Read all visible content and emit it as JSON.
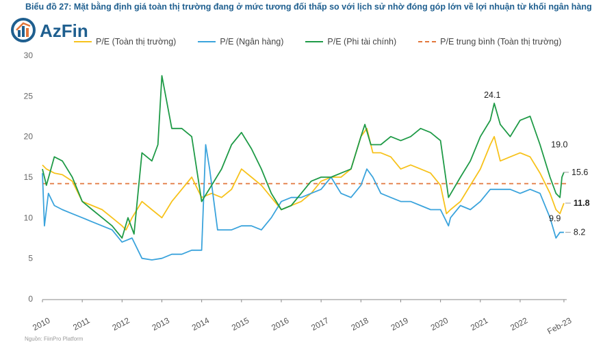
{
  "header": {
    "title": "Biểu đồ 27: Mặt bằng định giá toàn thị trường đang ở mức tương đối thấp so với lịch sử nhờ đóng góp lớn về lợi nhuận từ khối ngân hàng",
    "logo_text": "AzFin"
  },
  "footer": {
    "source": "Nguồn: FiinPro Platform"
  },
  "colors": {
    "market": "#f7c21b",
    "bank": "#3aa3dc",
    "nonfin": "#1e9a46",
    "avg": "#e2763b",
    "title": "#1f5f8f"
  },
  "chart_data": {
    "type": "line",
    "title": "Biểu đồ 27: Mặt bằng định giá toàn thị trường đang ở mức tương đối thấp so với lịch sử nhờ đóng góp lớn về lợi nhuận từ khối ngân hàng",
    "xlabel": "",
    "ylabel": "",
    "ylim": [
      0,
      30
    ],
    "xlim": [
      2010.0,
      2023.17
    ],
    "yticks": [
      "0",
      "5",
      "10",
      "15",
      "20",
      "25",
      "30"
    ],
    "xticks": [
      "2010",
      "2011",
      "2012",
      "2013",
      "2014",
      "2015",
      "2016",
      "2017",
      "2018",
      "2019",
      "2020",
      "2021",
      "2022",
      "Feb-23"
    ],
    "grid": false,
    "legend_position": "top",
    "series": [
      {
        "name": "P/E (Toàn thị trường)",
        "color": "#f7c21b",
        "style": "solid",
        "x": [
          2010.0,
          2010.1,
          2010.3,
          2010.5,
          2010.75,
          2011.0,
          2011.25,
          2011.5,
          2011.75,
          2012.0,
          2012.1,
          2012.25,
          2012.5,
          2012.75,
          2013.0,
          2013.25,
          2013.5,
          2013.75,
          2014.0,
          2014.25,
          2014.5,
          2014.75,
          2015.0,
          2015.25,
          2015.5,
          2015.75,
          2016.0,
          2016.25,
          2016.5,
          2016.75,
          2017.0,
          2017.25,
          2017.5,
          2017.75,
          2018.0,
          2018.15,
          2018.3,
          2018.5,
          2018.75,
          2019.0,
          2019.25,
          2019.5,
          2019.75,
          2020.0,
          2020.15,
          2020.25,
          2020.5,
          2020.75,
          2021.0,
          2021.25,
          2021.35,
          2021.5,
          2021.75,
          2022.0,
          2022.25,
          2022.5,
          2022.75,
          2022.9,
          2023.0,
          2023.1
        ],
        "y": [
          16.5,
          16,
          15.5,
          15.3,
          14.5,
          12,
          11.5,
          11,
          10,
          9,
          8.5,
          10,
          12,
          11,
          10,
          12,
          13.5,
          15,
          12.5,
          13,
          12.5,
          13.5,
          16,
          15,
          14,
          12.5,
          11,
          11.5,
          12,
          13,
          14.5,
          15,
          15,
          16,
          20,
          21,
          18,
          18,
          17.5,
          16,
          16.5,
          16,
          15.5,
          14,
          10.5,
          11,
          12,
          14,
          16,
          19,
          20,
          17,
          17.5,
          18,
          17.5,
          15.5,
          13,
          11,
          10.5,
          11.8
        ]
      },
      {
        "name": "P/E (Ngân hàng)",
        "color": "#3aa3dc",
        "style": "solid",
        "x": [
          2010.0,
          2010.05,
          2010.15,
          2010.3,
          2010.5,
          2010.75,
          2011.0,
          2011.25,
          2011.5,
          2011.75,
          2012.0,
          2012.25,
          2012.5,
          2012.75,
          2013.0,
          2013.25,
          2013.5,
          2013.75,
          2014.0,
          2014.1,
          2014.2,
          2014.4,
          2014.6,
          2014.75,
          2015.0,
          2015.25,
          2015.5,
          2015.75,
          2016.0,
          2016.25,
          2016.5,
          2016.75,
          2017.0,
          2017.25,
          2017.5,
          2017.75,
          2018.0,
          2018.15,
          2018.3,
          2018.5,
          2018.75,
          2019.0,
          2019.25,
          2019.5,
          2019.75,
          2020.0,
          2020.2,
          2020.25,
          2020.5,
          2020.75,
          2021.0,
          2021.25,
          2021.5,
          2021.75,
          2022.0,
          2022.25,
          2022.5,
          2022.75,
          2022.9,
          2023.0,
          2023.1
        ],
        "y": [
          15.5,
          9,
          13,
          11.5,
          11,
          10.5,
          10,
          9.5,
          9,
          8.5,
          7,
          7.5,
          5,
          4.8,
          5,
          5.5,
          5.5,
          6,
          6,
          19,
          16,
          8.5,
          8.5,
          8.5,
          9,
          9,
          8.5,
          10,
          12,
          12.5,
          12.5,
          13,
          13.5,
          15,
          13,
          12.5,
          14,
          16,
          15,
          13,
          12.5,
          12,
          12,
          11.5,
          11,
          11,
          9,
          10,
          11.5,
          11,
          12,
          13.5,
          13.5,
          13.5,
          13,
          13.5,
          13,
          10,
          7.5,
          8.2,
          8.2
        ]
      },
      {
        "name": "P/E (Phi tài chính)",
        "color": "#1e9a46",
        "style": "solid",
        "x": [
          2010.0,
          2010.1,
          2010.3,
          2010.5,
          2010.75,
          2011.0,
          2011.25,
          2011.5,
          2011.75,
          2012.0,
          2012.15,
          2012.3,
          2012.5,
          2012.75,
          2012.9,
          2013.0,
          2013.25,
          2013.5,
          2013.75,
          2014.0,
          2014.25,
          2014.5,
          2014.75,
          2015.0,
          2015.25,
          2015.5,
          2015.75,
          2016.0,
          2016.25,
          2016.5,
          2016.75,
          2017.0,
          2017.25,
          2017.5,
          2017.75,
          2018.0,
          2018.1,
          2018.25,
          2018.5,
          2018.75,
          2019.0,
          2019.25,
          2019.5,
          2019.75,
          2020.0,
          2020.2,
          2020.5,
          2020.75,
          2021.0,
          2021.25,
          2021.35,
          2021.5,
          2021.75,
          2022.0,
          2022.25,
          2022.5,
          2022.75,
          2022.9,
          2023.0,
          2023.05,
          2023.1
        ],
        "y": [
          16,
          14,
          17.5,
          17,
          15,
          12,
          11,
          10,
          9,
          7.5,
          10,
          8,
          18,
          17,
          19,
          27.5,
          21,
          21,
          20,
          12,
          14,
          16,
          19,
          20.5,
          18.5,
          16,
          13,
          11,
          11.5,
          13,
          14.5,
          15,
          15,
          15.5,
          16,
          20,
          21.5,
          19,
          19,
          20,
          19.5,
          20,
          21,
          20.5,
          19.5,
          12.5,
          15,
          17,
          20,
          22,
          24.1,
          21.5,
          20,
          22,
          22.5,
          19,
          15,
          13,
          12.5,
          15,
          15.6
        ]
      },
      {
        "name": "P/E trung bình (Toàn thị trường)",
        "color": "#e2763b",
        "style": "dashed",
        "x": [
          2010.0,
          2023.17
        ],
        "y": [
          14.2,
          14.2
        ]
      }
    ],
    "annotations": [
      {
        "text": "24.1",
        "x": 2021.3,
        "y": 24.1,
        "bold": false
      },
      {
        "text": "19.0",
        "x": 2022.88,
        "y": 19.0,
        "bold": false
      },
      {
        "text": "15.6",
        "x": 2023.05,
        "y": 15.6,
        "bold": false
      },
      {
        "text": "11.8",
        "x": 2023.1,
        "y": 11.8,
        "bold": true
      },
      {
        "text": "9.9",
        "x": 2022.85,
        "y": 9.9,
        "bold": false
      },
      {
        "text": "8.2",
        "x": 2023.1,
        "y": 8.2,
        "bold": false
      }
    ]
  }
}
